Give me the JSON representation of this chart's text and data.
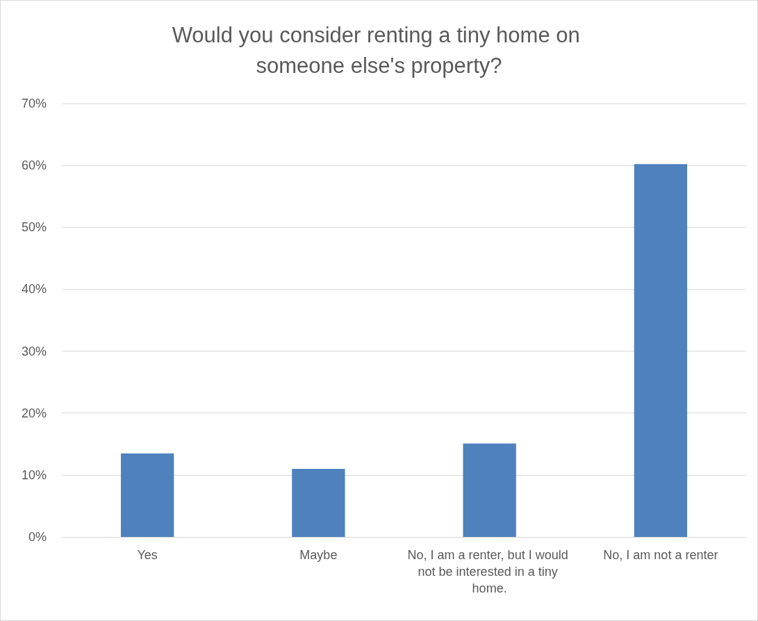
{
  "chart_data": {
    "type": "bar",
    "title": "Would you consider renting a tiny home on someone else's property?",
    "categories": [
      "Yes",
      "Maybe",
      "No, I am a renter, but I would not be interested in a tiny home.",
      "No, I am not a renter"
    ],
    "values": [
      13.5,
      11,
      15.1,
      60.2
    ],
    "color": "#4f81bd",
    "ylim": [
      0,
      70
    ],
    "yticks": [
      {
        "value": 0,
        "label": "0%"
      },
      {
        "value": 10,
        "label": "10%"
      },
      {
        "value": 20,
        "label": "20%"
      },
      {
        "value": 30,
        "label": "30%"
      },
      {
        "value": 40,
        "label": "40%"
      },
      {
        "value": 50,
        "label": "50%"
      },
      {
        "value": 60,
        "label": "60%"
      },
      {
        "value": 70,
        "label": "70%"
      }
    ],
    "grid": "y"
  }
}
